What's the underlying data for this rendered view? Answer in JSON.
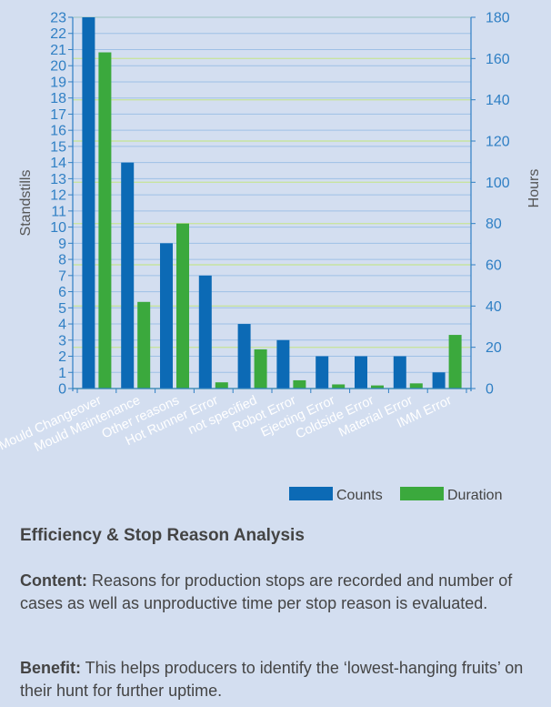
{
  "chart_data": {
    "type": "bar",
    "categories": [
      "Mould Changeover",
      "Mould Maintenance",
      "Other reasons",
      "Hot Runner Error",
      "not specified",
      "Robot Error",
      "Ejecting Error",
      "Coldside Error",
      "Material Error",
      "IMM Error"
    ],
    "series": [
      {
        "name": "Counts",
        "axis": "left",
        "color": "#0c6ab5",
        "values": [
          23,
          14,
          9,
          7,
          4,
          3,
          2,
          2,
          2,
          1
        ]
      },
      {
        "name": "Duration",
        "axis": "right",
        "color": "#3ba93d",
        "values": [
          163,
          42,
          80,
          3,
          19,
          4,
          2,
          1.5,
          2.5,
          26
        ]
      }
    ],
    "ylabel": "Standstills",
    "ylabel_right": "Hours",
    "ylim": [
      0,
      23
    ],
    "ylim_right": [
      0,
      180
    ],
    "yticks": [
      0,
      1,
      2,
      3,
      4,
      5,
      6,
      7,
      8,
      9,
      10,
      11,
      12,
      13,
      14,
      15,
      16,
      17,
      18,
      19,
      20,
      21,
      22,
      23
    ],
    "yticks_right": [
      0,
      20,
      40,
      60,
      80,
      100,
      120,
      140,
      160,
      180
    ],
    "grid": true,
    "legend": "bottom-right",
    "colors": {
      "grid_left": "#9ec0e6",
      "grid_right": "#c8e3a0",
      "axis": "#2f7fc4"
    }
  },
  "info": {
    "title": "Efficiency & Stop Reason Analysis",
    "content_label": "Content:",
    "content_text": " Reasons for production stops are recorded and number of cases as well as unproductive time per stop reason is evaluated.",
    "benefit_label": "Benefit:",
    "benefit_text": " This helps producers to identify the ‘lowest-hanging fruits’ on their hunt for further uptime."
  }
}
